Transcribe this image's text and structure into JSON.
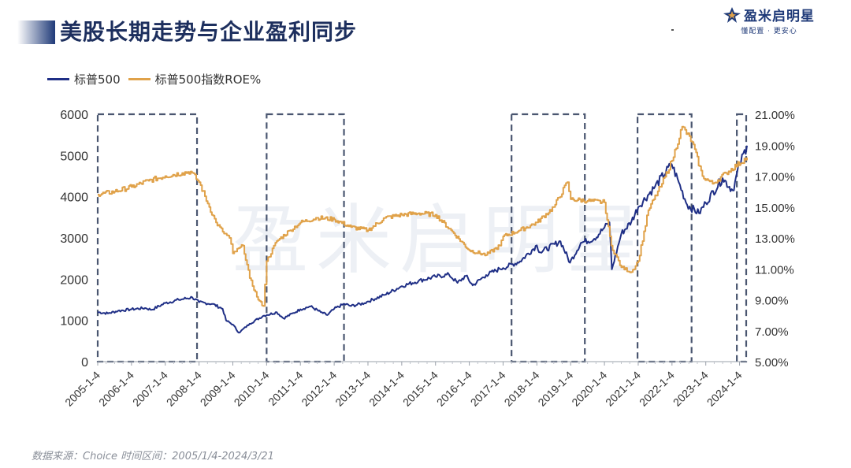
{
  "header": {
    "title": "美股长期走势与企业盈利同步",
    "brand_name": "盈米启明星",
    "brand_slogan": "懂配置 · 更安心",
    "watermark": "盈米启明星"
  },
  "footer": {
    "source": "数据来源：Choice 时间区间：2005/1/4-2024/3/21"
  },
  "colors": {
    "sp500": "#1f2f86",
    "roe": "#e0a24a",
    "box": "#4a5670"
  },
  "chart_data": {
    "type": "line",
    "title": "美股长期走势与企业盈利同步",
    "legend": [
      "标普500",
      "标普500指数ROE%"
    ],
    "legend_position": "top-left",
    "x_ticks": [
      "2005-1-4",
      "2006-1-4",
      "2007-1-4",
      "2008-1-4",
      "2009-1-4",
      "2010-1-4",
      "2011-1-4",
      "2012-1-4",
      "2013-1-4",
      "2014-1-4",
      "2015-1-4",
      "2016-1-4",
      "2017-1-4",
      "2018-1-4",
      "2019-1-4",
      "2020-1-4",
      "2021-1-4",
      "2022-1-4",
      "2023-1-4",
      "2024-1-4"
    ],
    "x_range": [
      2005.0,
      2024.22
    ],
    "y_left": {
      "label": "",
      "ylim": [
        0,
        6000
      ],
      "ticks": [
        "0",
        "1000",
        "2000",
        "3000",
        "4000",
        "5000",
        "6000"
      ]
    },
    "y_right": {
      "label": "",
      "ylim": [
        5,
        21
      ],
      "ticks": [
        "5.00%",
        "7.00%",
        "9.00%",
        "11.00%",
        "13.00%",
        "15.00%",
        "17.00%",
        "19.00%",
        "21.00%"
      ]
    },
    "series": [
      {
        "name": "标普500",
        "axis": "left",
        "points": [
          [
            2005.0,
            1200
          ],
          [
            2005.3,
            1170
          ],
          [
            2005.6,
            1230
          ],
          [
            2006.0,
            1270
          ],
          [
            2006.4,
            1300
          ],
          [
            2006.6,
            1260
          ],
          [
            2007.0,
            1420
          ],
          [
            2007.4,
            1500
          ],
          [
            2007.8,
            1560
          ],
          [
            2008.0,
            1440
          ],
          [
            2008.4,
            1400
          ],
          [
            2008.7,
            1280
          ],
          [
            2008.8,
            1000
          ],
          [
            2009.0,
            900
          ],
          [
            2009.18,
            700
          ],
          [
            2009.5,
            920
          ],
          [
            2009.9,
            1110
          ],
          [
            2010.0,
            1130
          ],
          [
            2010.3,
            1200
          ],
          [
            2010.5,
            1050
          ],
          [
            2010.8,
            1180
          ],
          [
            2011.0,
            1270
          ],
          [
            2011.3,
            1340
          ],
          [
            2011.6,
            1200
          ],
          [
            2011.8,
            1130
          ],
          [
            2012.0,
            1280
          ],
          [
            2012.3,
            1400
          ],
          [
            2012.5,
            1350
          ],
          [
            2012.9,
            1420
          ],
          [
            2013.0,
            1460
          ],
          [
            2013.5,
            1620
          ],
          [
            2014.0,
            1830
          ],
          [
            2014.5,
            1960
          ],
          [
            2015.0,
            2060
          ],
          [
            2015.4,
            2110
          ],
          [
            2015.65,
            1910
          ],
          [
            2015.9,
            2080
          ],
          [
            2016.1,
            1850
          ],
          [
            2016.5,
            2100
          ],
          [
            2016.9,
            2250
          ],
          [
            2017.0,
            2270
          ],
          [
            2017.5,
            2430
          ],
          [
            2018.0,
            2820
          ],
          [
            2018.1,
            2650
          ],
          [
            2018.7,
            2920
          ],
          [
            2018.98,
            2400
          ],
          [
            2019.3,
            2880
          ],
          [
            2019.7,
            2980
          ],
          [
            2020.0,
            3250
          ],
          [
            2020.15,
            3380
          ],
          [
            2020.22,
            2240
          ],
          [
            2020.5,
            3100
          ],
          [
            2020.8,
            3400
          ],
          [
            2021.0,
            3750
          ],
          [
            2021.5,
            4250
          ],
          [
            2021.99,
            4790
          ],
          [
            2022.2,
            4350
          ],
          [
            2022.45,
            3800
          ],
          [
            2022.8,
            3600
          ],
          [
            2023.0,
            3850
          ],
          [
            2023.5,
            4450
          ],
          [
            2023.8,
            4150
          ],
          [
            2024.0,
            4770
          ],
          [
            2024.22,
            5240
          ]
        ]
      },
      {
        "name": "标普500指数ROE%",
        "axis": "right",
        "points": [
          [
            2005.0,
            15.8
          ],
          [
            2005.5,
            16.0
          ],
          [
            2006.0,
            16.3
          ],
          [
            2006.5,
            16.7
          ],
          [
            2007.0,
            17.0
          ],
          [
            2007.5,
            17.2
          ],
          [
            2007.75,
            17.3
          ],
          [
            2008.0,
            16.6
          ],
          [
            2008.3,
            15.0
          ],
          [
            2008.5,
            14.0
          ],
          [
            2008.7,
            13.4
          ],
          [
            2008.9,
            13.0
          ],
          [
            2009.0,
            12.0
          ],
          [
            2009.3,
            12.5
          ],
          [
            2009.5,
            10.4
          ],
          [
            2009.75,
            9.0
          ],
          [
            2009.9,
            8.6
          ],
          [
            2010.0,
            11.5
          ],
          [
            2010.3,
            12.8
          ],
          [
            2010.7,
            13.5
          ],
          [
            2011.0,
            14.0
          ],
          [
            2011.5,
            14.3
          ],
          [
            2012.0,
            14.2
          ],
          [
            2012.5,
            13.7
          ],
          [
            2013.0,
            13.5
          ],
          [
            2013.5,
            14.3
          ],
          [
            2014.0,
            14.5
          ],
          [
            2014.5,
            14.6
          ],
          [
            2015.0,
            14.5
          ],
          [
            2015.5,
            13.4
          ],
          [
            2016.0,
            12.2
          ],
          [
            2016.5,
            11.9
          ],
          [
            2016.9,
            12.5
          ],
          [
            2017.0,
            13.1
          ],
          [
            2017.5,
            13.5
          ],
          [
            2018.0,
            14.0
          ],
          [
            2018.5,
            15.0
          ],
          [
            2018.9,
            16.6
          ],
          [
            2019.0,
            15.5
          ],
          [
            2019.5,
            15.4
          ],
          [
            2020.0,
            15.3
          ],
          [
            2020.2,
            12.5
          ],
          [
            2020.5,
            11.1
          ],
          [
            2020.8,
            10.8
          ],
          [
            2021.0,
            11.5
          ],
          [
            2021.3,
            14.8
          ],
          [
            2021.7,
            16.5
          ],
          [
            2022.0,
            18.0
          ],
          [
            2022.3,
            20.2
          ],
          [
            2022.6,
            19.2
          ],
          [
            2022.9,
            17.0
          ],
          [
            2023.2,
            16.5
          ],
          [
            2023.6,
            17.2
          ],
          [
            2024.22,
            18.2
          ]
        ]
      }
    ],
    "highlight_ranges": [
      [
        2005.0,
        2007.94
      ],
      [
        2010.0,
        2012.29
      ],
      [
        2017.25,
        2019.42
      ],
      [
        2020.98,
        2022.58
      ],
      [
        2023.92,
        2024.5
      ]
    ]
  }
}
